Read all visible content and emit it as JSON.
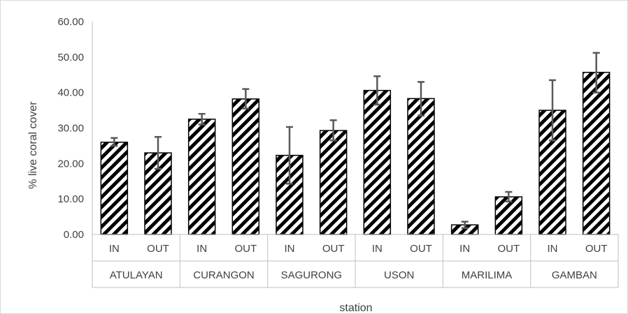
{
  "chart_data": {
    "type": "bar",
    "title": "",
    "xlabel": "station",
    "ylabel": "% live coral cover",
    "ylim": [
      0,
      60
    ],
    "yticks": [
      "0.00",
      "10.00",
      "20.00",
      "30.00",
      "40.00",
      "50.00",
      "60.00"
    ],
    "grid": false,
    "legend": "none",
    "fill_pattern": "diagonal-stripes",
    "colors": {
      "bar_stroke": "#000000",
      "stripe": "#000000",
      "error_bar": "#595959",
      "axis": "#bfbfbf",
      "text": "#404040"
    },
    "groups": [
      {
        "label": "ATULAYAN",
        "bars": [
          {
            "label": "IN",
            "value": 26.0,
            "err_low": 25.0,
            "err_high": 27.2
          },
          {
            "label": "OUT",
            "value": 23.0,
            "err_low": 18.5,
            "err_high": 27.5
          }
        ]
      },
      {
        "label": "CURANGON",
        "bars": [
          {
            "label": "IN",
            "value": 32.5,
            "err_low": 31.0,
            "err_high": 34.0
          },
          {
            "label": "OUT",
            "value": 38.2,
            "err_low": 35.5,
            "err_high": 41.0
          }
        ]
      },
      {
        "label": "SAGURONG",
        "bars": [
          {
            "label": "IN",
            "value": 22.3,
            "err_low": 14.3,
            "err_high": 30.3
          },
          {
            "label": "OUT",
            "value": 29.3,
            "err_low": 26.5,
            "err_high": 32.2
          }
        ]
      },
      {
        "label": "USON",
        "bars": [
          {
            "label": "IN",
            "value": 40.6,
            "err_low": 36.6,
            "err_high": 44.6
          },
          {
            "label": "OUT",
            "value": 38.3,
            "err_low": 33.5,
            "err_high": 43.0
          }
        ]
      },
      {
        "label": "MARILIMA",
        "bars": [
          {
            "label": "IN",
            "value": 2.7,
            "err_low": 1.8,
            "err_high": 3.6
          },
          {
            "label": "OUT",
            "value": 10.6,
            "err_low": 9.3,
            "err_high": 12.0
          }
        ]
      },
      {
        "label": "GAMBAN",
        "bars": [
          {
            "label": "IN",
            "value": 35.0,
            "err_low": 26.5,
            "err_high": 43.5
          },
          {
            "label": "OUT",
            "value": 45.7,
            "err_low": 40.0,
            "err_high": 51.2
          }
        ]
      }
    ]
  }
}
